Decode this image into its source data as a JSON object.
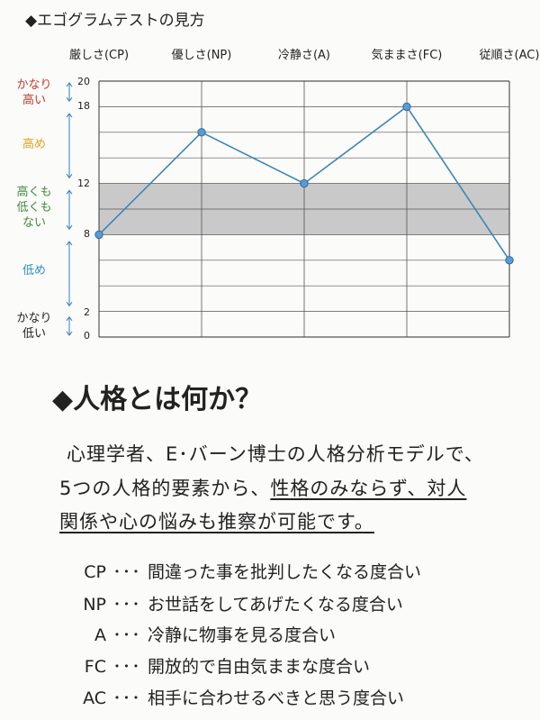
{
  "header": {
    "title": "◆エゴグラムテストの見方"
  },
  "chart_data": {
    "type": "line",
    "title": "エゴグラムテストの見方",
    "categories": [
      "厳しさ(CP)",
      "優しさ(NP)",
      "冷静さ(A)",
      "気ままさ(FC)",
      "従順さ(AC)"
    ],
    "values": [
      8,
      16,
      12,
      18,
      6
    ],
    "ylim": [
      0,
      20
    ],
    "yticks": [
      "0",
      "2",
      "8",
      "12",
      "18",
      "20"
    ],
    "shaded_band": [
      8,
      12
    ],
    "line_color": "#3a86b8",
    "grid": true,
    "levels": [
      {
        "label": "かなり\n高い",
        "color": "#c0392b"
      },
      {
        "label": "高め",
        "color": "#e0a21a"
      },
      {
        "label": "高くも\n低くも\nない",
        "color": "#3f8a3c"
      },
      {
        "label": "低め",
        "color": "#2f8fc4"
      },
      {
        "label": "かなり\n低い",
        "color": "#222222"
      }
    ]
  },
  "section": {
    "heading": "◆人格とは何か？",
    "para_line1": "心理学者、E･バーン博士の人格分析モデルで、",
    "para_line2_pre": "5つの人格的要素から、",
    "para_line2_u": "性格のみならず、対人",
    "para_line3": "関係や心の悩みも推察が可能です。"
  },
  "definitions": [
    {
      "code": "CP",
      "dots": "･･･",
      "text": "間違った事を批判したくなる度合い"
    },
    {
      "code": "NP",
      "dots": "･･･",
      "text": "お世話をしてあげたくなる度合い"
    },
    {
      "code": "A",
      "dots": "･･･",
      "text": "冷静に物事を見る度合い"
    },
    {
      "code": "FC",
      "dots": "･･･",
      "text": "開放的で自由気ままな度合い"
    },
    {
      "code": "AC",
      "dots": "･･･",
      "text": "相手に合わせるべきと思う度合い"
    }
  ]
}
